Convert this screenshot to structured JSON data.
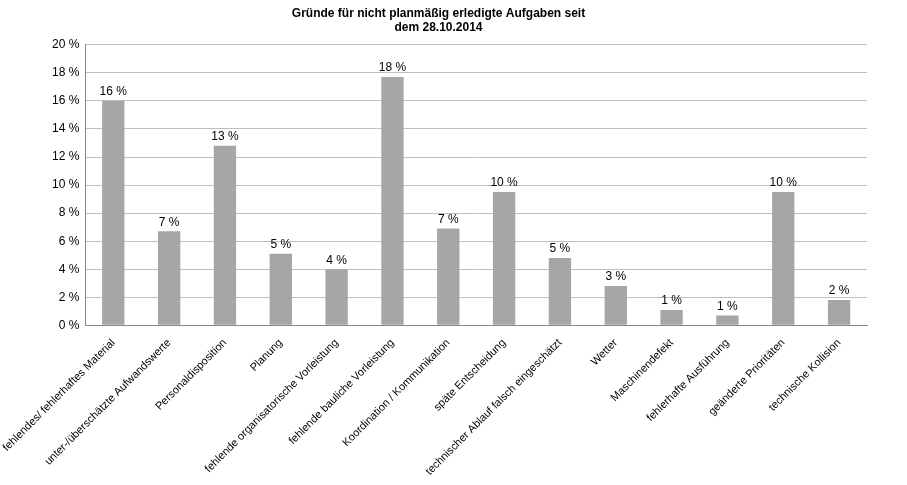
{
  "chart_data": {
    "type": "bar",
    "title": [
      "Gründe für nicht planmäßig erledigte Aufgaben seit",
      "dem 28.10.2014"
    ],
    "categories": [
      "fehlendes/ fehlerhaftes Material",
      "unter-/überschätzte Aufwandswerte",
      "Personaldisposition",
      "Planung",
      "fehlende organisatorische Vorleistung",
      "fehlende bauliche Vorleistung",
      "Koordination / Kommunikation",
      "späte Entscheidung",
      "technischer Ablauf falsch eingeschätzt",
      "Wetter",
      "Maschinendefekt",
      "fehlerhafte Ausführung",
      "geänderte Prioritäten",
      "technische Kollision"
    ],
    "values": [
      16,
      6.7,
      12.8,
      5.1,
      4.0,
      17.7,
      6.9,
      9.5,
      4.8,
      2.8,
      1.1,
      0.7,
      9.5,
      1.8
    ],
    "value_labels": [
      "16 %",
      "7 %",
      "13 %",
      "5 %",
      "4 %",
      "18 %",
      "7 %",
      "10 %",
      "5 %",
      "3 %",
      "1 %",
      "1 %",
      "10 %",
      "2 %"
    ],
    "color": "#a6a6a6",
    "ylim": [
      0,
      20
    ],
    "yticks": [
      {
        "value": 0,
        "label": "0 %"
      },
      {
        "value": 2,
        "label": "2 %"
      },
      {
        "value": 4,
        "label": "4 %"
      },
      {
        "value": 6,
        "label": "6 %"
      },
      {
        "value": 8,
        "label": "8 %"
      },
      {
        "value": 10,
        "label": "10 %"
      },
      {
        "value": 12,
        "label": "12 %"
      },
      {
        "value": 14,
        "label": "14 %"
      },
      {
        "value": 16,
        "label": "16 %"
      },
      {
        "value": 18,
        "label": "18 %"
      },
      {
        "value": 20,
        "label": "20 %"
      }
    ],
    "grid": true,
    "data_labels": true
  }
}
